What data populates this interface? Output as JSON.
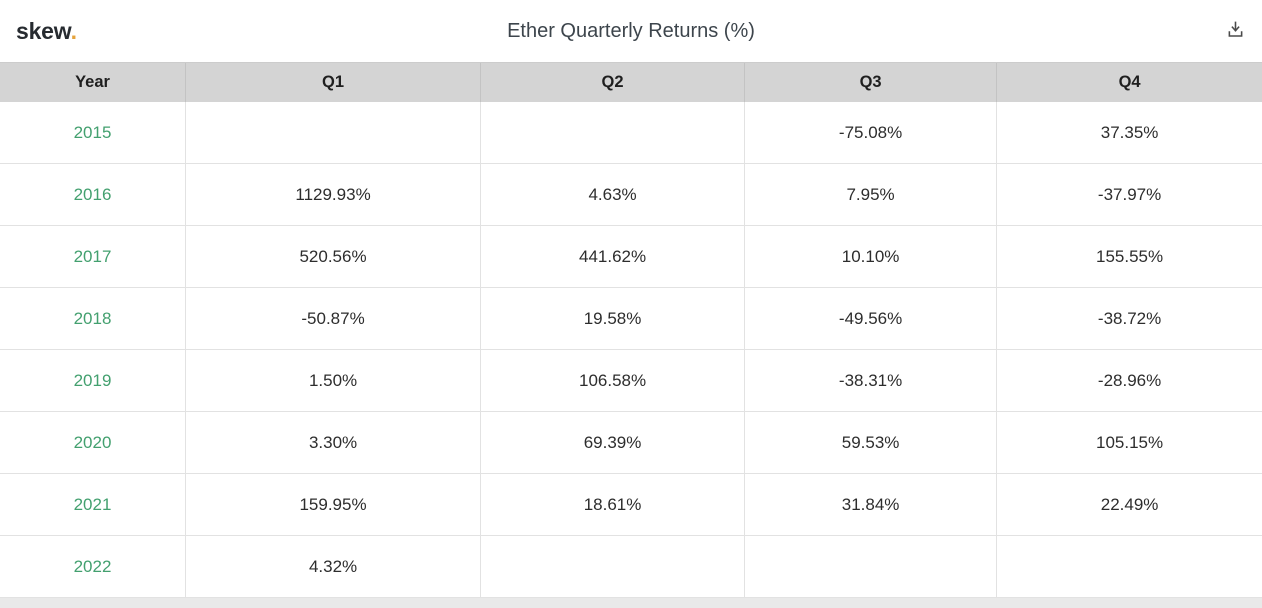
{
  "app": {
    "logo_text": "skew",
    "logo_dot": "."
  },
  "header": {
    "title": "Ether Quarterly Returns (%)"
  },
  "icons": {
    "download": "download-icon"
  },
  "colors": {
    "accent_green": "#43a06f",
    "logo_dot_gold": "#e5a33c",
    "header_row_bg": "#d4d4d4",
    "row_border": "#e2e2e2",
    "cell_text": "#2d2d2d",
    "title_text": "#3d454c"
  },
  "table": {
    "columns": [
      "Year",
      "Q1",
      "Q2",
      "Q3",
      "Q4"
    ],
    "rows": [
      {
        "year": "2015",
        "values": [
          "",
          "",
          "-75.08%",
          "37.35%"
        ]
      },
      {
        "year": "2016",
        "values": [
          "1129.93%",
          "4.63%",
          "7.95%",
          "-37.97%"
        ]
      },
      {
        "year": "2017",
        "values": [
          "520.56%",
          "441.62%",
          "10.10%",
          "155.55%"
        ]
      },
      {
        "year": "2018",
        "values": [
          "-50.87%",
          "19.58%",
          "-49.56%",
          "-38.72%"
        ]
      },
      {
        "year": "2019",
        "values": [
          "1.50%",
          "106.58%",
          "-38.31%",
          "-28.96%"
        ]
      },
      {
        "year": "2020",
        "values": [
          "3.30%",
          "69.39%",
          "59.53%",
          "105.15%"
        ]
      },
      {
        "year": "2021",
        "values": [
          "159.95%",
          "18.61%",
          "31.84%",
          "22.49%"
        ]
      },
      {
        "year": "2022",
        "values": [
          "4.32%",
          "",
          "",
          ""
        ]
      }
    ]
  },
  "chart_data": {
    "type": "table",
    "title": "Ether Quarterly Returns (%)",
    "columns": [
      "Year",
      "Q1",
      "Q2",
      "Q3",
      "Q4"
    ],
    "rows": [
      [
        "2015",
        null,
        null,
        -75.08,
        37.35
      ],
      [
        "2016",
        1129.93,
        4.63,
        7.95,
        -37.97
      ],
      [
        "2017",
        520.56,
        441.62,
        10.1,
        155.55
      ],
      [
        "2018",
        -50.87,
        19.58,
        -49.56,
        -38.72
      ],
      [
        "2019",
        1.5,
        106.58,
        -38.31,
        -28.96
      ],
      [
        "2020",
        3.3,
        69.39,
        59.53,
        105.15
      ],
      [
        "2021",
        159.95,
        18.61,
        31.84,
        22.49
      ],
      [
        "2022",
        4.32,
        null,
        null,
        null
      ]
    ]
  }
}
